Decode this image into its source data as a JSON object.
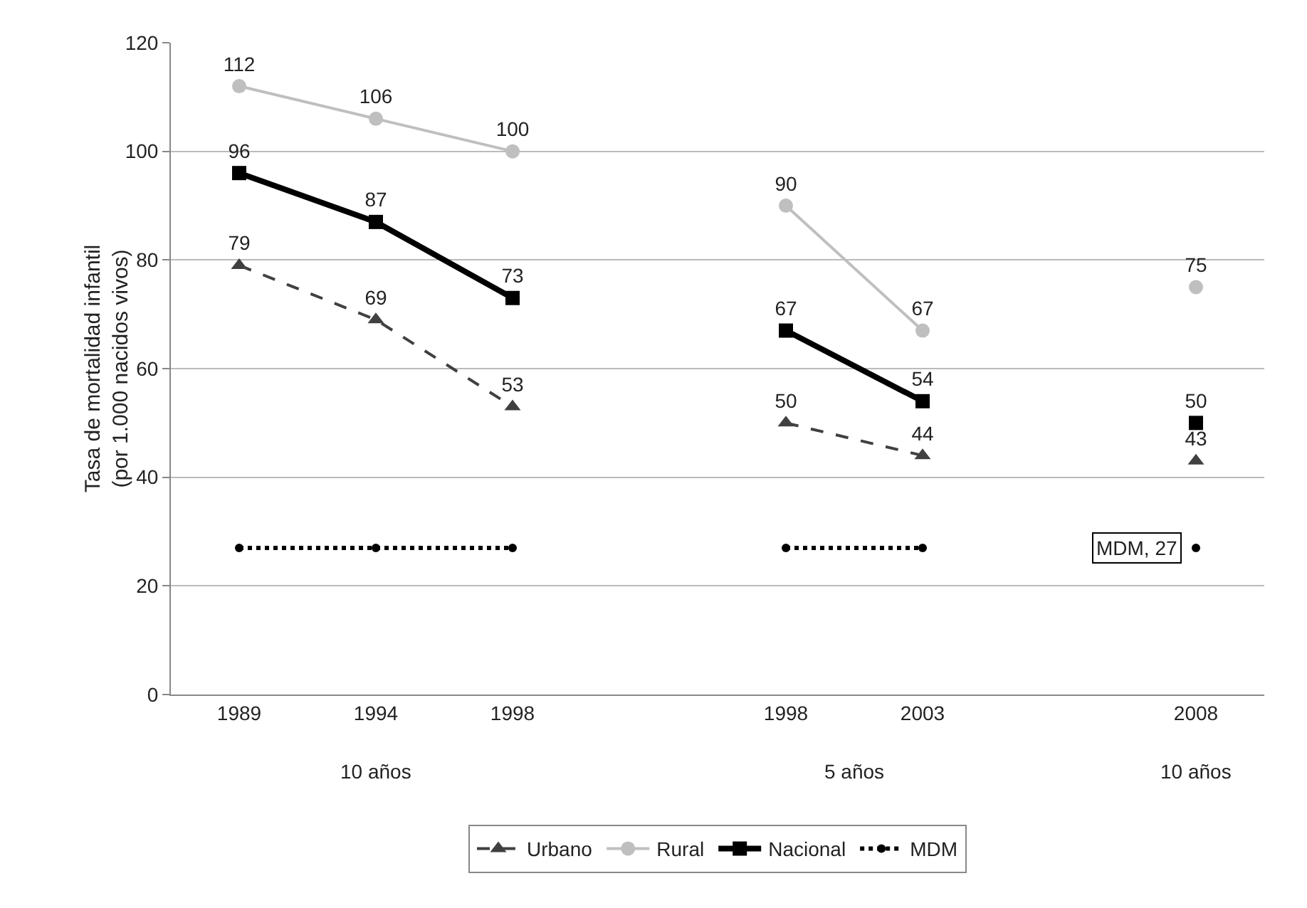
{
  "chart_data": {
    "type": "line",
    "ylabel": "Tasa de mortalidad infantil\n(por 1.000 nacidos vivos)",
    "categories": [
      "1989",
      "1994",
      "1998",
      null,
      "1998",
      "2003",
      null,
      "2008"
    ],
    "series": [
      {
        "name": "Urbano",
        "color": "#404040",
        "marker": "triangle",
        "line_style": "dashed",
        "values": [
          79,
          69,
          53,
          null,
          50,
          44,
          null,
          43
        ],
        "value_labels": [
          "79",
          "69",
          "53",
          null,
          "50",
          "44",
          null,
          "43"
        ]
      },
      {
        "name": "Rural",
        "color": "#bfbfbf",
        "marker": "circle",
        "line_style": "solid",
        "values": [
          112,
          106,
          100,
          null,
          90,
          67,
          null,
          75
        ],
        "value_labels": [
          "112",
          "106",
          "100",
          null,
          "90",
          "67",
          null,
          "75"
        ]
      },
      {
        "name": "Nacional",
        "color": "#000000",
        "marker": "square",
        "line_style": "solid",
        "values": [
          96,
          87,
          73,
          null,
          67,
          54,
          null,
          50
        ],
        "value_labels": [
          "96",
          "87",
          "73",
          null,
          "67",
          "54",
          null,
          "50"
        ]
      },
      {
        "name": "MDM",
        "color": "#000000",
        "marker": "circle",
        "line_style": "dotted",
        "values": [
          27,
          27,
          27,
          null,
          27,
          27,
          null,
          27
        ]
      }
    ],
    "ylim": [
      0,
      120
    ],
    "yticks": [
      0,
      20,
      40,
      60,
      80,
      100,
      120
    ],
    "grid": "y",
    "legend": "bottom",
    "annotations": [
      "10 años",
      "5 años",
      "10 años",
      {
        "text": "MDM, 27",
        "x": "2008",
        "y": 27
      }
    ]
  }
}
